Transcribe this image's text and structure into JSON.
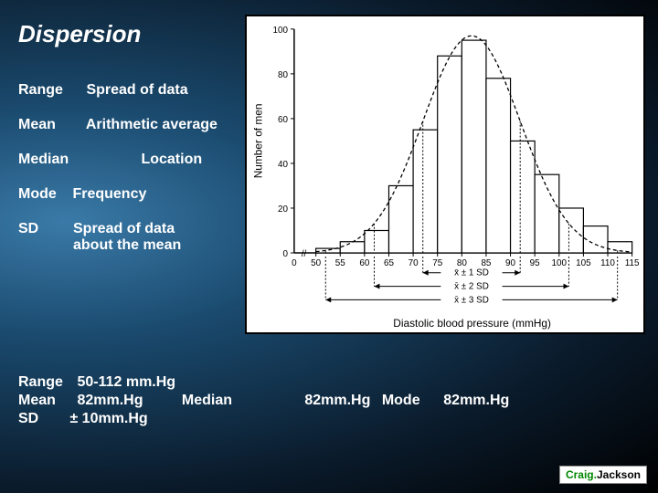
{
  "title": "Dispersion",
  "definitions": {
    "range": {
      "term": "Range",
      "desc": "Spread of data"
    },
    "mean": {
      "term": "Mean",
      "desc": "Arithmetic average"
    },
    "median": {
      "term": "Median",
      "desc": "Location"
    },
    "mode": {
      "term": "Mode",
      "desc": "Frequency"
    },
    "sd": {
      "term": "SD",
      "desc_line1": "Spread of data",
      "desc_line2": "about the mean"
    }
  },
  "chart": {
    "type": "histogram_with_normal_curve",
    "background_color": "#ffffff",
    "border_color": "#000000",
    "axis_color": "#000000",
    "bar_fill": "#ffffff",
    "bar_stroke": "#000000",
    "curve_stroke": "#000000",
    "curve_dash": "4,3",
    "sd_line_dash": "2,2",
    "ylabel": "Number of men",
    "xlabel": "Diastolic blood pressure (mmHg)",
    "ylim": [
      0,
      100
    ],
    "ytick_step": 20,
    "yticks": [
      0,
      20,
      40,
      60,
      80,
      100
    ],
    "x_start": 50,
    "x_end": 115,
    "xticks": [
      50,
      55,
      60,
      65,
      70,
      75,
      80,
      85,
      90,
      95,
      100,
      105,
      110,
      115
    ],
    "bars": [
      {
        "x": 50,
        "h": 2
      },
      {
        "x": 55,
        "h": 5
      },
      {
        "x": 60,
        "h": 10
      },
      {
        "x": 65,
        "h": 30
      },
      {
        "x": 70,
        "h": 55
      },
      {
        "x": 75,
        "h": 88
      },
      {
        "x": 80,
        "h": 95
      },
      {
        "x": 85,
        "h": 78
      },
      {
        "x": 90,
        "h": 50
      },
      {
        "x": 95,
        "h": 35
      },
      {
        "x": 100,
        "h": 20
      },
      {
        "x": 105,
        "h": 12
      },
      {
        "x": 110,
        "h": 5
      }
    ],
    "curve": {
      "mean": 82,
      "sd": 10,
      "peak_y": 97
    },
    "sd_markers": [
      {
        "label": "x̄ ± 1 SD",
        "low": 72,
        "high": 92
      },
      {
        "label": "x̄ ± 2 SD",
        "low": 62,
        "high": 102
      },
      {
        "label": "x̄ ± 3 SD",
        "low": 52,
        "high": 112
      }
    ],
    "sd_label_1": "X̄ ± 1 SD",
    "sd_label_2": "X̄ ± 2 SD",
    "sd_label_3": "X̄ ± 3 SD",
    "axis_fontsize": 11,
    "tick_fontsize": 10,
    "label_fontsize": 12
  },
  "stats": {
    "range": {
      "term": "Range",
      "value": "50-112 mm.Hg"
    },
    "mean": {
      "term": "Mean",
      "value": "82mm.Hg"
    },
    "median": {
      "term": "Median",
      "value": "82mm.Hg"
    },
    "mode": {
      "term": "Mode",
      "value": "82mm.Hg"
    },
    "sd": {
      "term": "SD",
      "value": "± 10mm.Hg"
    }
  },
  "logo": {
    "first": "Craig.",
    "last": "Jackson"
  }
}
